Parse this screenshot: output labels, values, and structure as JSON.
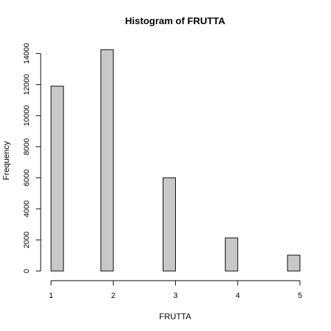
{
  "chart_data": {
    "type": "bar",
    "title": "Histogram of FRUTTA",
    "xlabel": "FRUTTA",
    "ylabel": "Frequency",
    "bin_width": 0.2,
    "bins": [
      {
        "start": 1.0,
        "end": 1.2,
        "value": 11900
      },
      {
        "start": 1.2,
        "end": 1.4,
        "value": 0
      },
      {
        "start": 1.4,
        "end": 1.6,
        "value": 0
      },
      {
        "start": 1.6,
        "end": 1.8,
        "value": 0
      },
      {
        "start": 1.8,
        "end": 2.0,
        "value": 14250
      },
      {
        "start": 2.0,
        "end": 2.2,
        "value": 0
      },
      {
        "start": 2.2,
        "end": 2.4,
        "value": 0
      },
      {
        "start": 2.4,
        "end": 2.6,
        "value": 0
      },
      {
        "start": 2.6,
        "end": 2.8,
        "value": 0
      },
      {
        "start": 2.8,
        "end": 3.0,
        "value": 6000
      },
      {
        "start": 3.0,
        "end": 3.2,
        "value": 0
      },
      {
        "start": 3.2,
        "end": 3.4,
        "value": 0
      },
      {
        "start": 3.4,
        "end": 3.6,
        "value": 0
      },
      {
        "start": 3.6,
        "end": 3.8,
        "value": 0
      },
      {
        "start": 3.8,
        "end": 4.0,
        "value": 2130
      },
      {
        "start": 4.0,
        "end": 4.2,
        "value": 0
      },
      {
        "start": 4.2,
        "end": 4.4,
        "value": 0
      },
      {
        "start": 4.4,
        "end": 4.6,
        "value": 0
      },
      {
        "start": 4.6,
        "end": 4.8,
        "value": 0
      },
      {
        "start": 4.8,
        "end": 5.0,
        "value": 1020
      }
    ],
    "xlim": [
      1,
      5
    ],
    "ylim": [
      0,
      14250
    ],
    "x_ticks": [
      "1",
      "2",
      "3",
      "4",
      "5"
    ],
    "y_ticks": [
      "0",
      "2000",
      "4000",
      "6000",
      "8000",
      "10000",
      "12000",
      "14000"
    ],
    "bar_fill": "#c8c8c8",
    "bar_stroke": "#000000",
    "grid": false,
    "legend": "none"
  }
}
